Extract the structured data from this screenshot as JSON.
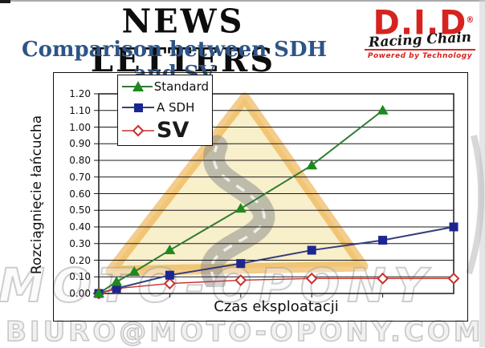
{
  "header": {
    "title": "NEWS LETTERS",
    "subtitle": "Comparison between SDH and SV",
    "subtitle_color": "#2e5486"
  },
  "logo": {
    "brand": "D.I.D",
    "registered": "®",
    "script": "Racing Chain",
    "tagline": "Powered by Technology",
    "brand_color": "#d6231f"
  },
  "watermark": {
    "middle_text": "MOTO-OPONY",
    "bottom_text": "BIURO@MOTO-OPONY.COM.PL",
    "triangle_fill": "#f3e1a0",
    "triangle_border": "#eba32c",
    "road_color": "#8f8f8f"
  },
  "chart_data": {
    "type": "line",
    "title": "",
    "xlabel": "Czas eksploatacji",
    "ylabel": "Rozciągnięcie łańcucha",
    "ylim": [
      0,
      1.2
    ],
    "ytick_step": 0.1,
    "ytick_labels": [
      "1.20",
      "1.10",
      "1.00",
      "0.90",
      "0.80",
      "0.70",
      "0.60",
      "0.50",
      "0.40",
      "0.30",
      "0.20",
      "0.10",
      "0.00"
    ],
    "x_axis": {
      "min": 0,
      "max": 5,
      "ticks": [
        1,
        2,
        3,
        4
      ],
      "tick_labels_shown": false
    },
    "grid": true,
    "legend_position": "top-left",
    "series": [
      {
        "name": "Standard",
        "marker": "triangle",
        "color": "#1e8a1e",
        "line_color": "#2f7a33",
        "x": [
          0,
          0.25,
          0.5,
          1,
          2,
          3,
          4
        ],
        "y": [
          0.0,
          0.07,
          0.13,
          0.26,
          0.51,
          0.77,
          1.1
        ]
      },
      {
        "name": "A SDH",
        "marker": "square",
        "color": "#1c2690",
        "line_color": "#333f7a",
        "x": [
          0,
          0.25,
          1,
          2,
          3,
          4,
          5
        ],
        "y": [
          0.0,
          0.03,
          0.11,
          0.18,
          0.26,
          0.32,
          0.4
        ]
      },
      {
        "name": "SV",
        "marker": "diamond-open",
        "color": "#c5312c",
        "line_color": "#c5312c",
        "x": [
          0,
          0.25,
          1,
          2,
          3,
          4,
          5
        ],
        "y": [
          0.0,
          0.03,
          0.06,
          0.08,
          0.09,
          0.09,
          0.09
        ]
      }
    ]
  }
}
